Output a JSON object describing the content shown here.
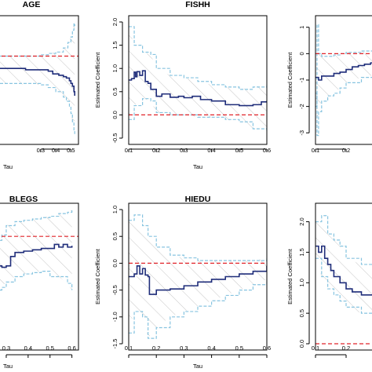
{
  "colors": {
    "estimate": "#1f2d7a",
    "band": "#87c4e0",
    "hatch": "#b8b8b8",
    "zero": "#e0242a",
    "axis": "#000000"
  },
  "chart_data": [
    {
      "type": "line",
      "title": "AGE",
      "xlabel": "Tau",
      "ylabel": "",
      "xlim": [
        0.0,
        0.55
      ],
      "ylim": [
        -0.6,
        0.25
      ],
      "xticks": [
        0.3,
        0.4,
        0.5
      ],
      "xtick_labels": [
        "0.3",
        "0.4",
        "0.5"
      ],
      "yticks": [],
      "ytick_labels": [],
      "zero_line": 0,
      "series": [
        {
          "role": "estimate",
          "x": [
            0.0,
            0.2,
            0.3,
            0.35,
            0.38,
            0.42,
            0.45,
            0.47,
            0.49,
            0.5,
            0.51,
            0.52,
            0.525
          ],
          "y": [
            -0.09,
            -0.1,
            -0.1,
            -0.11,
            -0.13,
            -0.14,
            -0.15,
            -0.16,
            -0.18,
            -0.2,
            -0.22,
            -0.26,
            -0.29
          ]
        },
        {
          "role": "upper",
          "x": [
            0.0,
            0.3,
            0.35,
            0.4,
            0.45,
            0.48,
            0.5,
            0.51,
            0.52,
            0.525
          ],
          "y": [
            0.0,
            0.01,
            0.02,
            0.03,
            0.06,
            0.1,
            0.14,
            0.19,
            0.24,
            0.22
          ]
        },
        {
          "role": "lower",
          "x": [
            0.0,
            0.3,
            0.35,
            0.4,
            0.45,
            0.47,
            0.49,
            0.5,
            0.51,
            0.52,
            0.525
          ],
          "y": [
            -0.2,
            -0.21,
            -0.23,
            -0.26,
            -0.3,
            -0.33,
            -0.37,
            -0.42,
            -0.48,
            -0.54,
            -0.57
          ]
        }
      ]
    },
    {
      "type": "line",
      "title": "FISHH",
      "xlabel": "Tau",
      "ylabel": "Estimated Coefficient",
      "xlim": [
        0.1,
        0.6
      ],
      "ylim": [
        -0.5,
        2.0
      ],
      "xticks": [
        0.1,
        0.2,
        0.3,
        0.4,
        0.5,
        0.6
      ],
      "xtick_labels": [
        "0.1",
        "0.2",
        "0.3",
        "0.4",
        "0.5",
        "0.6"
      ],
      "yticks": [
        -0.5,
        0.0,
        0.5,
        1.0,
        1.5,
        2.0
      ],
      "ytick_labels": [
        "-0.5",
        "0.0",
        "0.5",
        "1.0",
        "1.5",
        "2.0"
      ],
      "zero_line": 0,
      "series": [
        {
          "role": "estimate",
          "x": [
            0.1,
            0.11,
            0.12,
            0.125,
            0.13,
            0.14,
            0.15,
            0.16,
            0.17,
            0.18,
            0.2,
            0.22,
            0.25,
            0.28,
            0.3,
            0.33,
            0.36,
            0.4,
            0.45,
            0.5,
            0.55,
            0.58,
            0.6
          ],
          "y": [
            0.75,
            0.78,
            0.92,
            0.82,
            0.93,
            0.85,
            0.95,
            0.72,
            0.68,
            0.55,
            0.4,
            0.45,
            0.38,
            0.4,
            0.37,
            0.4,
            0.33,
            0.3,
            0.22,
            0.2,
            0.22,
            0.28,
            0.3
          ]
        },
        {
          "role": "upper",
          "x": [
            0.1,
            0.12,
            0.15,
            0.18,
            0.2,
            0.25,
            0.3,
            0.35,
            0.4,
            0.45,
            0.5,
            0.55,
            0.6
          ],
          "y": [
            1.9,
            1.5,
            1.35,
            1.3,
            1.0,
            0.85,
            0.8,
            0.72,
            0.65,
            0.6,
            0.55,
            0.6,
            0.65
          ]
        },
        {
          "role": "lower",
          "x": [
            0.1,
            0.12,
            0.15,
            0.18,
            0.2,
            0.25,
            0.3,
            0.35,
            0.4,
            0.45,
            0.5,
            0.55,
            0.6
          ],
          "y": [
            -0.1,
            0.2,
            0.35,
            0.3,
            0.05,
            0.0,
            0.0,
            -0.05,
            -0.05,
            -0.1,
            -0.15,
            -0.3,
            -0.35
          ]
        }
      ]
    },
    {
      "type": "line",
      "title": "",
      "xlabel": "",
      "ylabel": "Estimated Coefficient",
      "xlim": [
        0.1,
        0.3
      ],
      "ylim": [
        -3.2,
        1.2
      ],
      "xticks": [
        0.1,
        0.2
      ],
      "xtick_labels": [
        "0.1",
        "0.2"
      ],
      "yticks": [
        -3,
        -2,
        -1,
        0,
        1
      ],
      "ytick_labels": [
        "-3",
        "-2",
        "-1",
        "0",
        "1"
      ],
      "zero_line": 0,
      "series": [
        {
          "role": "estimate",
          "x": [
            0.1,
            0.11,
            0.12,
            0.14,
            0.16,
            0.18,
            0.2,
            0.22,
            0.24,
            0.26,
            0.28,
            0.3
          ],
          "y": [
            -0.9,
            -1.0,
            -0.85,
            -0.85,
            -0.75,
            -0.7,
            -0.6,
            -0.5,
            -0.45,
            -0.4,
            -0.35,
            -0.3
          ]
        },
        {
          "role": "upper",
          "x": [
            0.1,
            0.105,
            0.11,
            0.12,
            0.14,
            0.16,
            0.18,
            0.2,
            0.25,
            0.3
          ],
          "y": [
            -2.0,
            1.1,
            0.0,
            -0.1,
            -0.1,
            -0.05,
            0.0,
            0.05,
            0.1,
            0.15
          ]
        },
        {
          "role": "lower",
          "x": [
            0.1,
            0.105,
            0.11,
            0.12,
            0.14,
            0.16,
            0.18,
            0.2,
            0.25,
            0.3
          ],
          "y": [
            -1.5,
            -3.1,
            -2.2,
            -1.8,
            -1.6,
            -1.5,
            -1.3,
            -1.1,
            -0.9,
            -0.8
          ]
        }
      ]
    },
    {
      "type": "line",
      "title": "BLEGS",
      "xlabel": "Tau",
      "ylabel": "",
      "xlim": [
        0.25,
        0.63
      ],
      "ylim": [
        -0.5,
        0.5
      ],
      "xticks": [
        0.3,
        0.4,
        0.5,
        0.6
      ],
      "xtick_labels": [
        "0.3",
        "0.4",
        "0.5",
        "0.6"
      ],
      "yticks": [],
      "ytick_labels": [],
      "zero_line": 0.3,
      "series": [
        {
          "role": "estimate",
          "x": [
            0.25,
            0.28,
            0.3,
            0.32,
            0.34,
            0.38,
            0.42,
            0.46,
            0.5,
            0.52,
            0.54,
            0.56,
            0.58,
            0.6
          ],
          "y": [
            0.08,
            0.07,
            0.08,
            0.15,
            0.18,
            0.19,
            0.2,
            0.21,
            0.21,
            0.24,
            0.22,
            0.24,
            0.22,
            0.23
          ]
        },
        {
          "role": "upper",
          "x": [
            0.25,
            0.28,
            0.3,
            0.34,
            0.38,
            0.42,
            0.46,
            0.5,
            0.54,
            0.58,
            0.6
          ],
          "y": [
            0.27,
            0.31,
            0.38,
            0.41,
            0.42,
            0.43,
            0.44,
            0.45,
            0.47,
            0.48,
            0.5
          ]
        },
        {
          "role": "lower",
          "x": [
            0.25,
            0.28,
            0.3,
            0.34,
            0.38,
            0.42,
            0.46,
            0.5,
            0.54,
            0.58,
            0.6
          ],
          "y": [
            -0.1,
            -0.08,
            -0.04,
            0.0,
            0.02,
            0.03,
            0.04,
            0.0,
            0.0,
            -0.05,
            -0.1
          ]
        }
      ]
    },
    {
      "type": "line",
      "title": "HIEDU",
      "xlabel": "Tau",
      "ylabel": "Estimated Coefficient",
      "xlim": [
        0.1,
        0.6
      ],
      "ylim": [
        -1.5,
        1.0
      ],
      "xticks": [
        0.1,
        0.2,
        0.3,
        0.4,
        0.5,
        0.6
      ],
      "xtick_labels": [
        "0.1",
        "0.2",
        "0.3",
        "0.4",
        "0.5",
        "0.6"
      ],
      "yticks": [
        -1.5,
        -1.0,
        -0.5,
        0.0,
        0.5,
        1.0
      ],
      "ytick_labels": [
        "-1.5",
        "-1.0",
        "-0.5",
        "0.0",
        "0.5",
        "1.0"
      ],
      "zero_line": 0,
      "series": [
        {
          "role": "estimate",
          "x": [
            0.1,
            0.12,
            0.13,
            0.14,
            0.15,
            0.16,
            0.17,
            0.175,
            0.2,
            0.25,
            0.3,
            0.35,
            0.4,
            0.45,
            0.5,
            0.55,
            0.6
          ],
          "y": [
            -0.25,
            -0.2,
            -0.05,
            -0.2,
            -0.1,
            -0.22,
            -0.25,
            -0.58,
            -0.5,
            -0.48,
            -0.42,
            -0.35,
            -0.3,
            -0.25,
            -0.2,
            -0.15,
            -0.05
          ]
        },
        {
          "role": "upper",
          "x": [
            0.1,
            0.12,
            0.15,
            0.17,
            0.2,
            0.25,
            0.3,
            0.35,
            0.4,
            0.45,
            0.5,
            0.55,
            0.6
          ],
          "y": [
            0.8,
            0.9,
            0.7,
            0.5,
            0.3,
            0.15,
            0.1,
            0.05,
            0.05,
            0.05,
            0.05,
            0.05,
            0.1
          ]
        },
        {
          "role": "lower",
          "x": [
            0.1,
            0.12,
            0.15,
            0.17,
            0.2,
            0.25,
            0.3,
            0.35,
            0.4,
            0.45,
            0.5,
            0.55,
            0.6
          ],
          "y": [
            -1.3,
            -0.9,
            -1.0,
            -1.4,
            -1.2,
            -1.0,
            -0.9,
            -0.8,
            -0.7,
            -0.6,
            -0.5,
            -0.4,
            -0.3
          ]
        }
      ]
    },
    {
      "type": "line",
      "title": "",
      "xlabel": "",
      "ylabel": "Estimated Coefficient",
      "xlim": [
        0.1,
        0.3
      ],
      "ylim": [
        0.0,
        2.2
      ],
      "xticks": [
        0.1,
        0.2
      ],
      "xtick_labels": [
        "0.1",
        "0.2"
      ],
      "yticks": [
        0.0,
        0.5,
        1.0,
        1.5,
        2.0
      ],
      "ytick_labels": [
        "0.0",
        "0.5",
        "1.0",
        "1.5",
        "2.0"
      ],
      "zero_line": 0,
      "series": [
        {
          "role": "estimate",
          "x": [
            0.1,
            0.11,
            0.12,
            0.13,
            0.14,
            0.15,
            0.16,
            0.18,
            0.2,
            0.22,
            0.25,
            0.3
          ],
          "y": [
            1.6,
            1.5,
            1.6,
            1.4,
            1.3,
            1.2,
            1.1,
            1.0,
            0.9,
            0.85,
            0.8,
            0.75
          ]
        },
        {
          "role": "upper",
          "x": [
            0.1,
            0.12,
            0.14,
            0.16,
            0.18,
            0.2,
            0.25,
            0.3
          ],
          "y": [
            2.0,
            2.1,
            1.8,
            1.7,
            1.6,
            1.4,
            1.3,
            1.2
          ]
        },
        {
          "role": "lower",
          "x": [
            0.1,
            0.12,
            0.14,
            0.16,
            0.18,
            0.2,
            0.25,
            0.3
          ],
          "y": [
            1.4,
            1.1,
            0.9,
            0.8,
            0.7,
            0.6,
            0.5,
            0.45
          ]
        }
      ]
    }
  ]
}
